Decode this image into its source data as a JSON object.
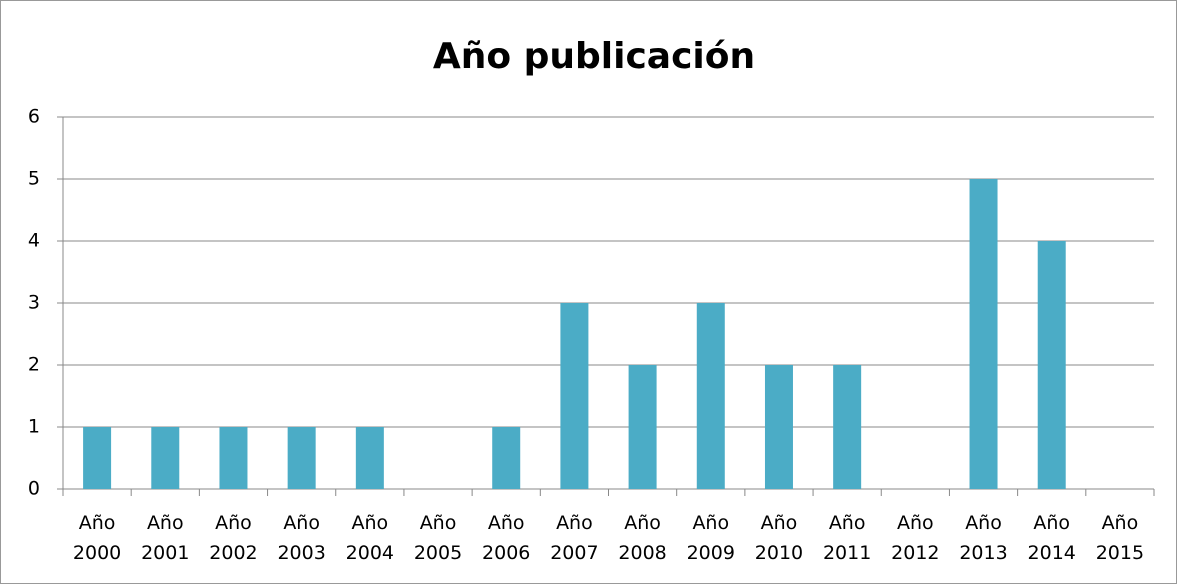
{
  "chart_data": {
    "type": "bar",
    "title": "Año publicación",
    "categories": [
      "Año 2000",
      "Año 2001",
      "Año 2002",
      "Año 2003",
      "Año 2004",
      "Año 2005",
      "Año 2006",
      "Año 2007",
      "Año 2008",
      "Año 2009",
      "Año 2010",
      "Año 2011",
      "Año 2012",
      "Año 2013",
      "Año 2014",
      "Año 2015"
    ],
    "values": [
      1,
      1,
      1,
      1,
      1,
      0,
      1,
      3,
      2,
      3,
      2,
      2,
      0,
      5,
      4,
      0
    ],
    "color": "#4bacc6",
    "ylim": [
      0,
      6
    ],
    "yticks": [
      0,
      1,
      2,
      3,
      4,
      5,
      6
    ],
    "grid": true
  }
}
